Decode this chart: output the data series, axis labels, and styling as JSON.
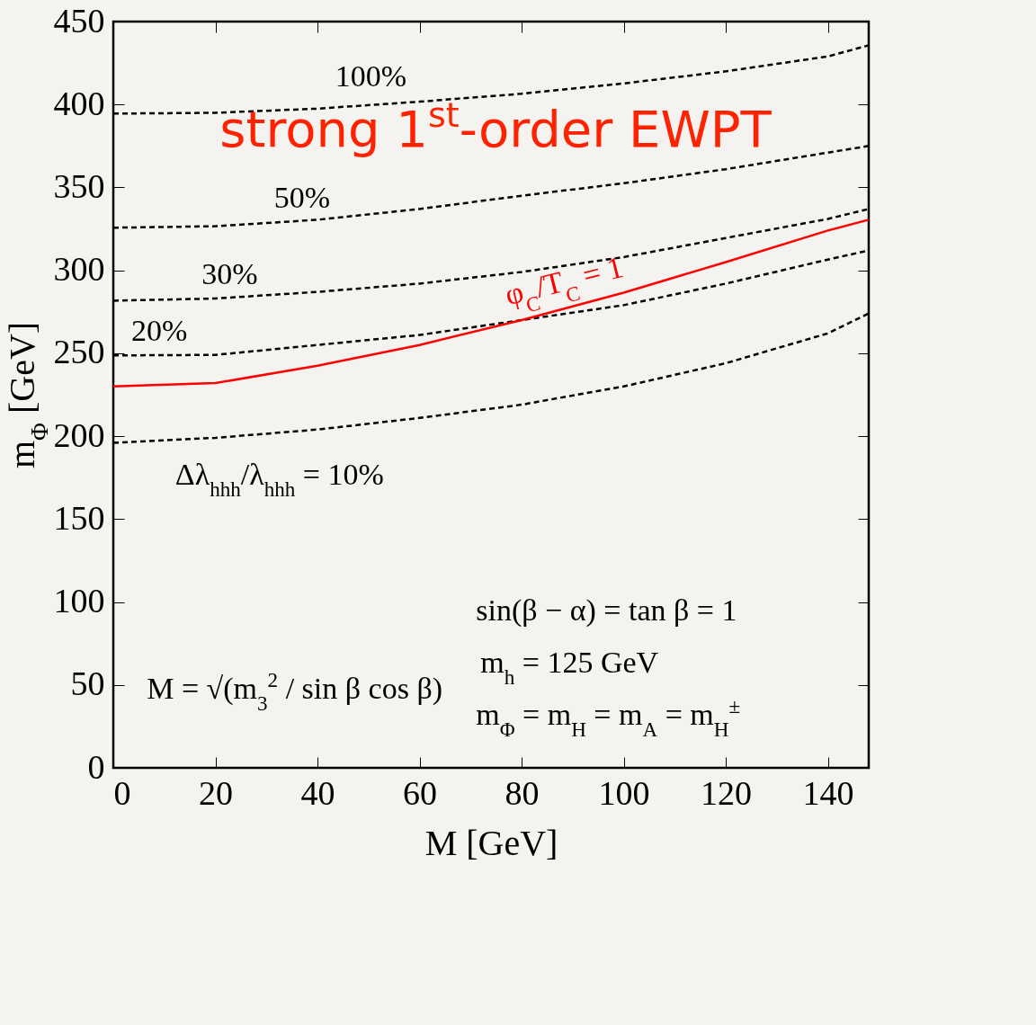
{
  "chart_data": {
    "type": "line",
    "xlabel": "M [GeV]",
    "ylabel": "m$_{Φ}$ [GeV]",
    "x": [
      0,
      20,
      40,
      60,
      80,
      100,
      120,
      140,
      148
    ],
    "series": [
      {
        "color": "#000000",
        "line_style": "dashed",
        "values": [
          394.5,
          395,
          397.5,
          401.7,
          406.5,
          412.7,
          420,
          429,
          435.7
        ]
      },
      {
        "color": "#000000",
        "line_style": "dashed",
        "values": [
          325.7,
          326.6,
          330.5,
          337,
          345,
          352.5,
          361,
          371,
          375
        ]
      },
      {
        "color": "#000000",
        "line_style": "dashed",
        "values": [
          281.7,
          283,
          287,
          292,
          299,
          308,
          319.5,
          331,
          337
        ]
      },
      {
        "color": "#000000",
        "line_style": "dashed",
        "values": [
          248.7,
          249,
          255,
          261,
          270,
          279,
          292,
          306.5,
          312
        ]
      },
      {
        "color": "#000000",
        "line_style": "dashed",
        "values": [
          196,
          199,
          204,
          211,
          219,
          230,
          244,
          262,
          274
        ]
      },
      {
        "color": "#ff0000",
        "line_style": "solid",
        "values": [
          230,
          232,
          242.5,
          255,
          270,
          286.5,
          305,
          324,
          330.5
        ]
      }
    ],
    "xlim": [
      0,
      148
    ],
    "xticks": [
      0,
      20,
      40,
      60,
      80,
      100,
      120,
      140
    ],
    "ylim": [
      0,
      450
    ],
    "yticks": [
      0,
      50,
      100,
      150,
      200,
      250,
      300,
      350,
      400,
      450
    ],
    "grid": false,
    "legend": false,
    "marker": "none",
    "annotations": [
      "100%",
      "50%",
      "30%",
      "20%",
      "Δλ$_{hhh}$/λ$_{hhh}$ = 10%",
      "φ$_{C}$/T$_{C}$ = 1",
      "strong 1$^{st}$-order EWPT",
      "sin(β − α) = tan β = 1",
      "m$_{h}$ = 125 GeV",
      "m$_{Φ}$ = m$_{H}$ = m$_{A}$ = m$_{H}$$^{±}$",
      "M = √(m$_{3}$$^{2}$ / sin β cos β)"
    ]
  }
}
